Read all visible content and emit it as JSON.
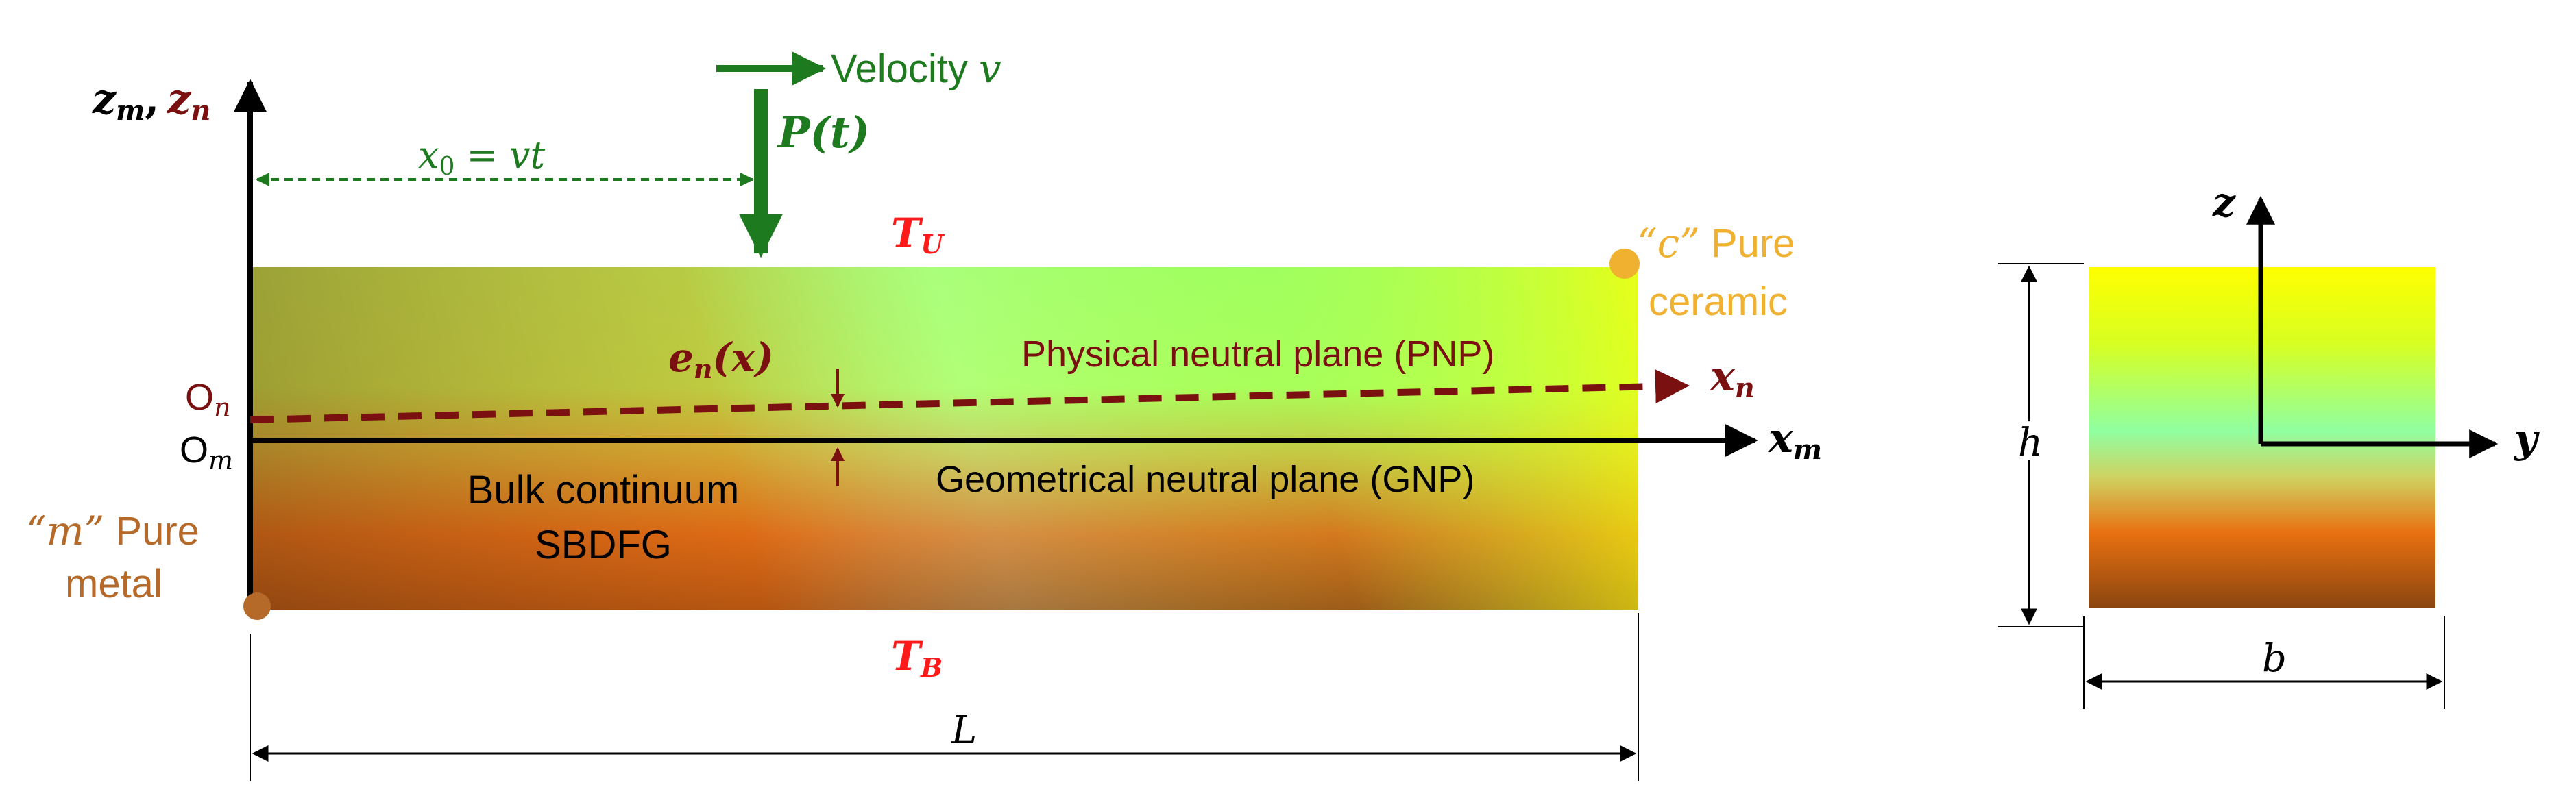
{
  "colors": {
    "black": "#000000",
    "dark_red": "#7b1010",
    "green": "#1e7a1e",
    "red": "#ff1a1a",
    "gold": "#f0b030",
    "brown": "#b56a2a",
    "ceramic_top": "#ffff00",
    "mid_green": "#a8ff5a",
    "orange": "#e86a10",
    "metal_bottom": "#8a4510"
  },
  "labels": {
    "axis_zm": "z",
    "axis_zm_sub": "m",
    "axis_comma": ",",
    "axis_zn": "z",
    "axis_zn_sub": "n",
    "velocity_word": "Velocity ",
    "velocity_symbol": "v",
    "load": "P(t)",
    "x0": "x",
    "x0_sub": "0",
    "x0_rhs": " = vt",
    "TU": "T",
    "TU_sub": "U",
    "TB": "T",
    "TB_sub": "B",
    "ceramic_quote": "“c”",
    "ceramic_line1": " Pure",
    "ceramic_line2": "ceramic",
    "metal_quote": "“m”",
    "metal_line1": " Pure",
    "metal_line2": "metal",
    "en": "e",
    "en_sub": "n",
    "en_arg": "(x)",
    "pnp": "Physical neutral plane (PNP)",
    "gnp": "Geometrical neutral plane (GNP)",
    "On": "O",
    "On_sub": "n",
    "Om": "O",
    "Om_sub": "m",
    "xn": "x",
    "xn_sub": "n",
    "xm": "x",
    "xm_sub": "m",
    "bulk_line1": "Bulk continuum",
    "bulk_line2": "SBDFG",
    "length": "L",
    "cs_z": "z",
    "cs_y": "y",
    "height": "h",
    "width": "b"
  }
}
